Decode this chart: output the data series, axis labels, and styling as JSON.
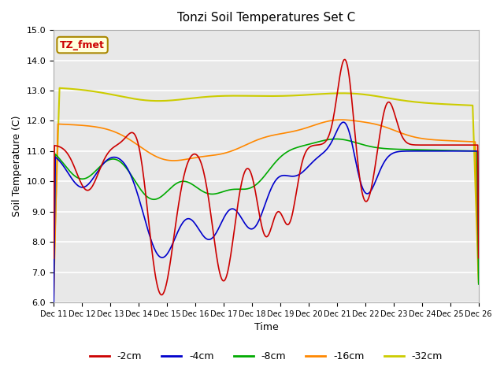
{
  "title": "Tonzi Soil Temperatures Set C",
  "xlabel": "Time",
  "ylabel": "Soil Temperature (C)",
  "ylim": [
    6.0,
    15.0
  ],
  "yticks": [
    6.0,
    7.0,
    8.0,
    9.0,
    10.0,
    11.0,
    12.0,
    13.0,
    14.0,
    15.0
  ],
  "xtick_labels": [
    "Dec 11",
    "Dec 12",
    "Dec 13",
    "Dec 14",
    "Dec 15",
    "Dec 16",
    "Dec 17",
    "Dec 18",
    "Dec 19",
    "Dec 20",
    "Dec 21",
    "Dec 22",
    "Dec 23",
    "Dec 24",
    "Dec 25",
    "Dec 26"
  ],
  "annotation_text": "TZ_fmet",
  "annotation_color": "#cc0000",
  "annotation_bg": "#ffffdd",
  "annotation_border": "#aa8800",
  "colors": {
    "-2cm": "#cc0000",
    "-4cm": "#0000cc",
    "-8cm": "#00aa00",
    "-16cm": "#ff8800",
    "-32cm": "#cccc00"
  },
  "legend_labels": [
    "-2cm",
    "-4cm",
    "-8cm",
    "-16cm",
    "-32cm"
  ],
  "plot_bg": "#e8e8e8",
  "n_points": 500,
  "xlim": [
    0,
    15
  ]
}
